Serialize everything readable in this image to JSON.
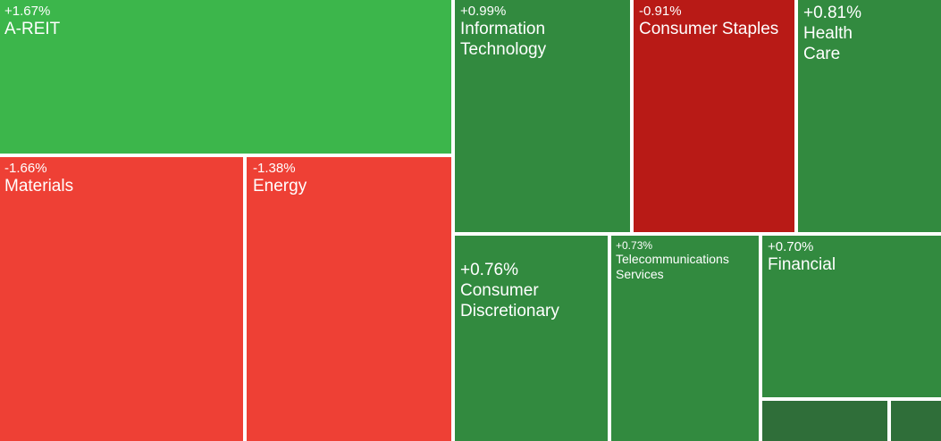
{
  "chart_data": {
    "type": "treemap",
    "title": "",
    "colors": {
      "strong_up": "#3cb64b",
      "up": "#328a3f",
      "flat_up": "#2f6e39",
      "down": "#ee4035",
      "strong_down": "#b81a16"
    },
    "tiles": [
      {
        "id": "a-reit",
        "name": "A-REIT",
        "change": "+1.67%",
        "value": 1.67,
        "color": "#3cb64b"
      },
      {
        "id": "information-technology",
        "name": "Information Technology",
        "change": "+0.99%",
        "value": 0.99,
        "color": "#328a3f"
      },
      {
        "id": "consumer-staples",
        "name": "Consumer Staples",
        "change": "-0.91%",
        "value": -0.91,
        "color": "#b81a16"
      },
      {
        "id": "health-care",
        "name": "Health Care",
        "change": "+0.81%",
        "value": 0.81,
        "color": "#328a3f"
      },
      {
        "id": "materials",
        "name": "Materials",
        "change": "-1.66%",
        "value": -1.66,
        "color": "#ee4035"
      },
      {
        "id": "energy",
        "name": "Energy",
        "change": "-1.38%",
        "value": -1.38,
        "color": "#ee4035"
      },
      {
        "id": "consumer-discretionary",
        "name": "Consumer Discretionary",
        "change": "+0.76%",
        "value": 0.76,
        "color": "#328a3f"
      },
      {
        "id": "telecommunications-services",
        "name": "Telecommunications Services",
        "change": "+0.73%",
        "value": 0.73,
        "color": "#328a3f"
      },
      {
        "id": "financial",
        "name": "Financial",
        "change": "+0.70%",
        "value": 0.7,
        "color": "#328a3f"
      },
      {
        "id": "small-sector-1",
        "name": "",
        "change": "",
        "value": null,
        "color": "#2f6e39"
      },
      {
        "id": "small-sector-2",
        "name": "",
        "change": "",
        "value": null,
        "color": "#2f6e39"
      }
    ]
  }
}
